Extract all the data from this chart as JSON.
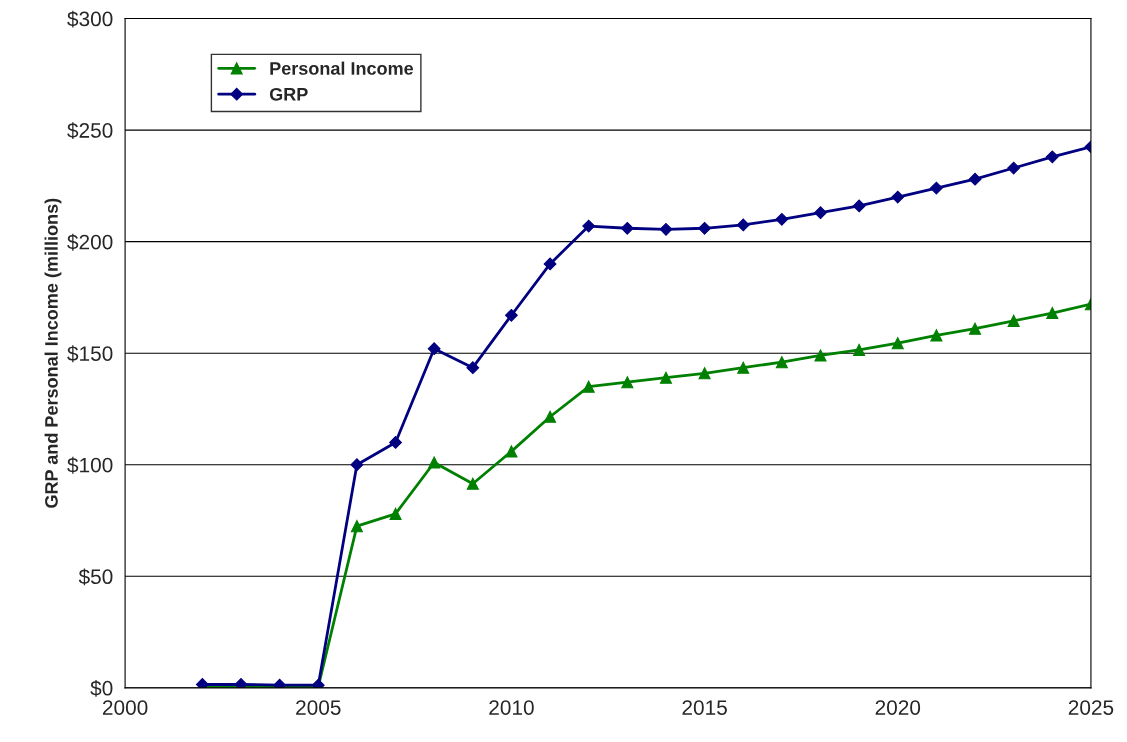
{
  "chart_data": {
    "type": "line",
    "ylabel": "GRP and Personal Income (millions)",
    "x": [
      2002,
      2003,
      2004,
      2005,
      2006,
      2007,
      2008,
      2009,
      2010,
      2011,
      2012,
      2013,
      2014,
      2015,
      2016,
      2017,
      2018,
      2019,
      2020,
      2021,
      2022,
      2023,
      2024,
      2025
    ],
    "series": [
      {
        "name": "Personal Income",
        "color": "#008000",
        "marker": "triangle",
        "values": [
          0.5,
          0.5,
          0.5,
          0.5,
          72.5,
          78,
          101,
          91.5,
          106,
          121.5,
          135,
          137,
          139,
          141,
          143.5,
          146,
          149,
          151.5,
          154.5,
          158,
          161,
          164.5,
          168,
          172
        ]
      },
      {
        "name": "GRP",
        "color": "#000080",
        "marker": "diamond",
        "values": [
          1.5,
          1.5,
          1.2,
          1.2,
          100,
          110,
          152,
          143.5,
          167,
          190,
          207,
          206,
          205.5,
          206,
          207.5,
          210,
          213,
          216,
          220,
          224,
          228,
          233,
          238,
          242.5
        ]
      }
    ],
    "xlim": [
      2000,
      2025
    ],
    "xticks": [
      2000,
      2005,
      2010,
      2015,
      2020,
      2025
    ],
    "ylim": [
      0,
      300
    ],
    "yticks": [
      {
        "value": 0,
        "label": "$0"
      },
      {
        "value": 50,
        "label": "$50"
      },
      {
        "value": 100,
        "label": "$100"
      },
      {
        "value": 150,
        "label": "$150"
      },
      {
        "value": 200,
        "label": "$200"
      },
      {
        "value": 250,
        "label": "$250"
      },
      {
        "value": 300,
        "label": "$300"
      }
    ],
    "grid": "y",
    "legend": "top left",
    "line_style": "solid"
  }
}
